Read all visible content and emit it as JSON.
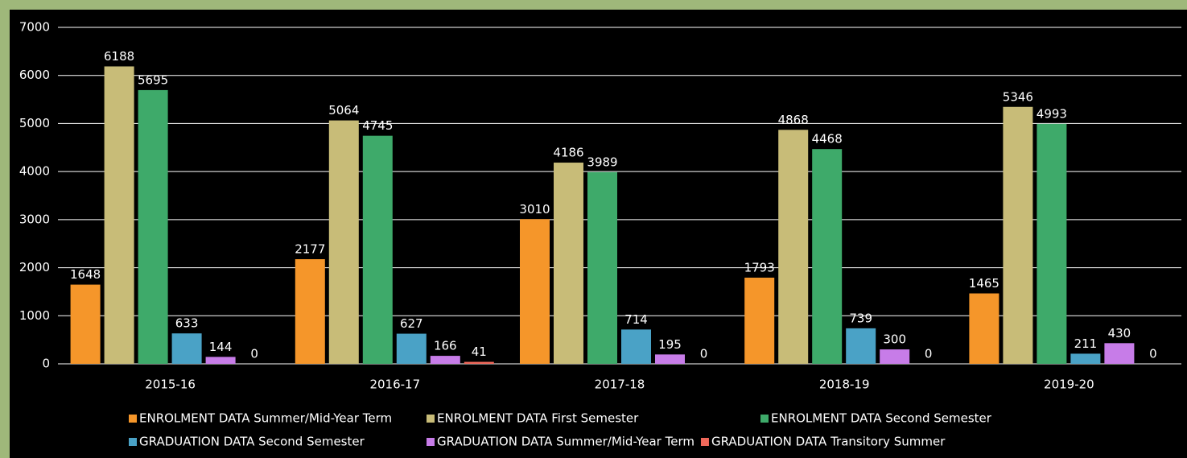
{
  "chart_data": {
    "type": "bar",
    "categories": [
      "2015-16",
      "2016-17",
      "2017-18",
      "2018-19",
      "2019-20"
    ],
    "series": [
      {
        "name": "ENROLMENT DATA Summer/Mid-Year Term",
        "color": "#f5962a",
        "values": [
          1648,
          2177,
          3010,
          1793,
          1465
        ]
      },
      {
        "name": "ENROLMENT DATA First Semester",
        "color": "#c8bc78",
        "values": [
          6188,
          5064,
          4186,
          4868,
          5346
        ]
      },
      {
        "name": "ENROLMENT DATA Second Semester",
        "color": "#3eaa6a",
        "values": [
          5695,
          4745,
          3989,
          4468,
          4993
        ]
      },
      {
        "name": "GRADUATION DATA Second Semester",
        "color": "#4aa2c6",
        "values": [
          633,
          627,
          714,
          739,
          211
        ]
      },
      {
        "name": "GRADUATION DATA Summer/Mid-Year Term",
        "color": "#c77ce8",
        "values": [
          144,
          166,
          195,
          300,
          430
        ]
      },
      {
        "name": "GRADUATION DATA Transitory Summer",
        "color": "#f0685a",
        "values": [
          0,
          41,
          0,
          0,
          0
        ]
      }
    ],
    "ylim": [
      0,
      7000
    ],
    "yticks": [
      0,
      1000,
      2000,
      3000,
      4000,
      5000,
      6000,
      7000
    ],
    "grid": true,
    "legend": "bottom"
  }
}
